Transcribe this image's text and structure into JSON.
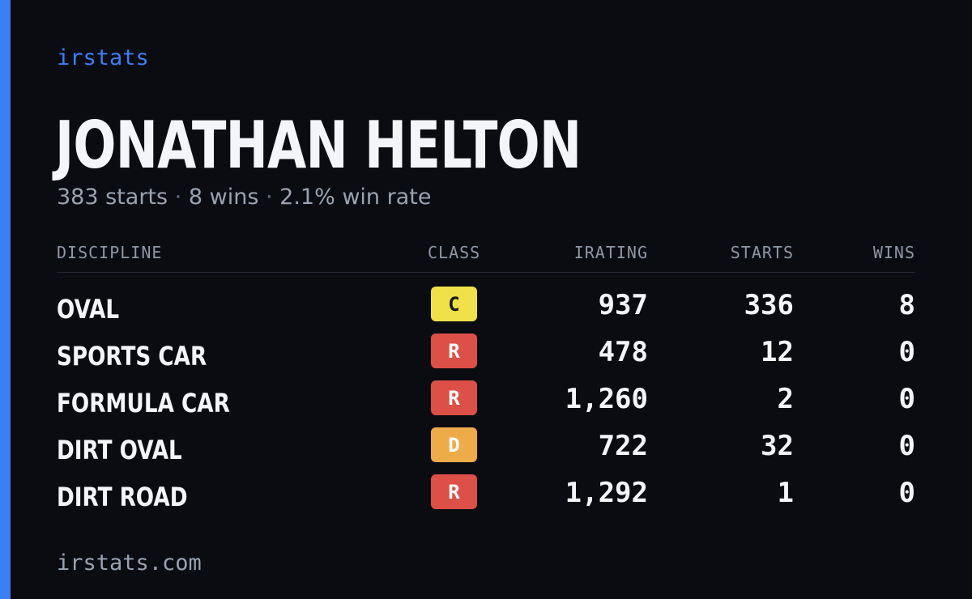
{
  "brand": "irstats",
  "driver": {
    "name": "JONATHAN HELTON",
    "starts_text": "383 starts",
    "wins_text": "8 wins",
    "win_rate_text": "2.1% win rate",
    "separator": "·"
  },
  "table": {
    "headers": {
      "discipline": "DISCIPLINE",
      "class": "CLASS",
      "irating": "IRATING",
      "starts": "STARTS",
      "wins": "WINS"
    },
    "rows": [
      {
        "discipline": "OVAL",
        "class": "C",
        "class_color": "#f0e04a",
        "class_text_color": "#1a1a1a",
        "irating": "937",
        "starts": "336",
        "wins": "8"
      },
      {
        "discipline": "SPORTS CAR",
        "class": "R",
        "class_color": "#dc5048",
        "class_text_color": "#ffffff",
        "irating": "478",
        "starts": "12",
        "wins": "0"
      },
      {
        "discipline": "FORMULA CAR",
        "class": "R",
        "class_color": "#dc5048",
        "class_text_color": "#ffffff",
        "irating": "1,260",
        "starts": "2",
        "wins": "0"
      },
      {
        "discipline": "DIRT OVAL",
        "class": "D",
        "class_color": "#eeab4a",
        "class_text_color": "#ffffff",
        "irating": "722",
        "starts": "32",
        "wins": "0"
      },
      {
        "discipline": "DIRT ROAD",
        "class": "R",
        "class_color": "#dc5048",
        "class_text_color": "#ffffff",
        "irating": "1,292",
        "starts": "1",
        "wins": "0"
      }
    ]
  },
  "footer": "irstats.com",
  "colors": {
    "background": "#0a0c12",
    "accent": "#3b7ff5",
    "muted_text": "#9aa3b2"
  }
}
